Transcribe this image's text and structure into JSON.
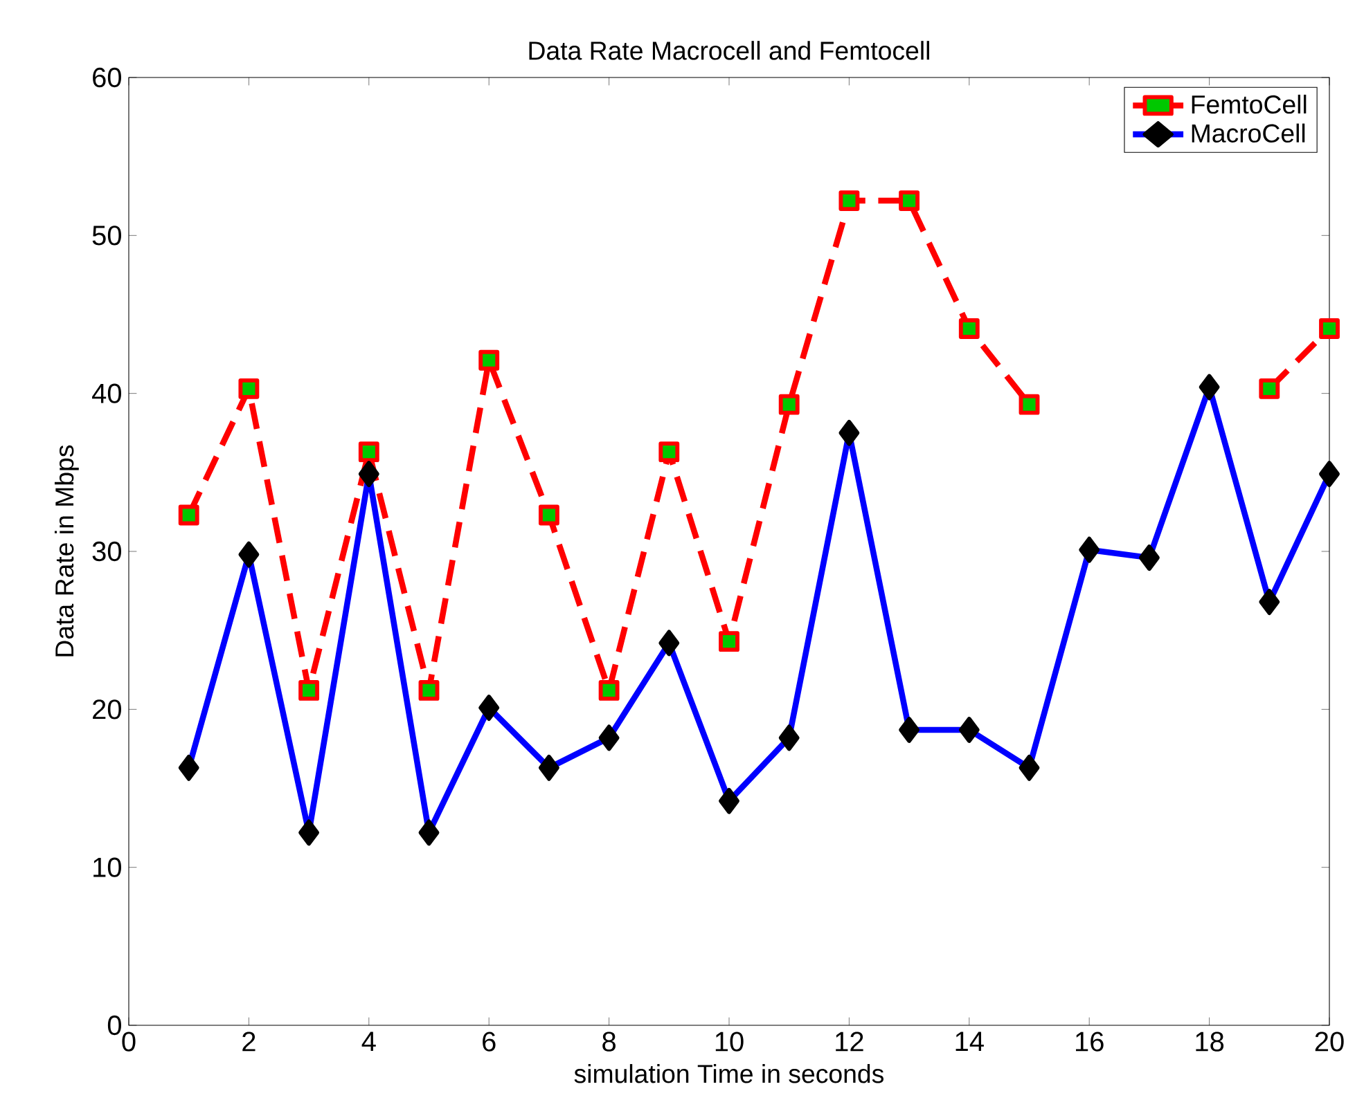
{
  "chart_data": {
    "type": "line",
    "title": "Data Rate Macrocell and Femtocell",
    "xlabel": "simulation Time in seconds",
    "ylabel": "Data Rate in Mbps",
    "x": [
      1,
      2,
      3,
      4,
      5,
      6,
      7,
      8,
      9,
      10,
      11,
      12,
      13,
      14,
      15,
      16,
      17,
      18,
      19,
      20
    ],
    "series": [
      {
        "name": "FemtoCell",
        "color": "#ff0000",
        "line_style": "dashed",
        "marker": "square",
        "values": [
          32.3,
          40.3,
          21.2,
          36.3,
          21.2,
          42.1,
          32.3,
          21.2,
          36.3,
          24.3,
          39.3,
          52.2,
          52.2,
          44.1,
          39.3,
          null,
          null,
          null,
          40.3,
          44.1
        ]
      },
      {
        "name": "MacroCell",
        "color": "#0000ff",
        "line_style": "solid",
        "marker": "diamond",
        "values": [
          16.3,
          29.8,
          12.2,
          34.9,
          12.2,
          20.1,
          16.3,
          18.2,
          24.2,
          14.2,
          18.2,
          37.5,
          18.7,
          18.7,
          16.3,
          30.1,
          29.6,
          40.4,
          26.8,
          34.9
        ]
      }
    ],
    "xlim": [
      0,
      20
    ],
    "ylim": [
      0,
      60
    ],
    "xticks": [
      0,
      2,
      4,
      6,
      8,
      10,
      12,
      14,
      16,
      18,
      20
    ],
    "yticks": [
      0,
      10,
      20,
      30,
      40,
      50,
      60
    ],
    "grid": false,
    "legend": "top right"
  }
}
